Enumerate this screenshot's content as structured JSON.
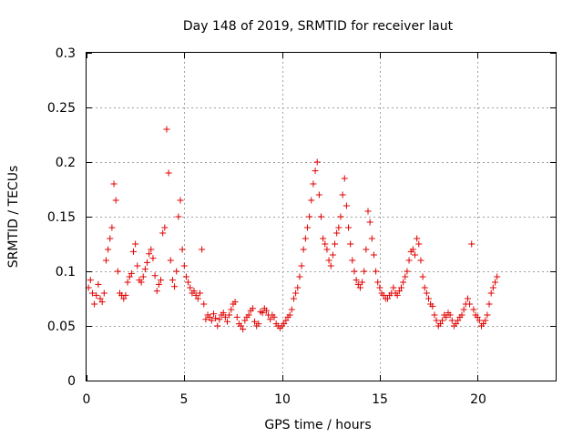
{
  "chart_data": {
    "type": "scatter",
    "title": "Day 148 of 2019, SRMTID for receiver laut",
    "xlabel": "GPS time / hours",
    "ylabel": "SRMTID / TECUs",
    "xlim": [
      0,
      24
    ],
    "ylim": [
      0,
      0.3
    ],
    "xticks": [
      0,
      5,
      10,
      15,
      20
    ],
    "xtick_labels": [
      "0",
      "5",
      "10",
      "15",
      "20"
    ],
    "yticks": [
      0,
      0.05,
      0.1,
      0.15,
      0.2,
      0.25,
      0.3
    ],
    "ytick_labels": [
      "0",
      "0.05",
      "0.1",
      "0.15",
      "0.2",
      "0.25",
      "0.3"
    ],
    "grid": true,
    "marker": "+",
    "marker_color": "#e00000",
    "series": [
      {
        "name": "SRMTID",
        "sample_interval_hours": 0.1,
        "x_start": 0.1,
        "values": [
          0.085,
          0.092,
          0.08,
          0.07,
          0.078,
          0.088,
          0.075,
          0.072,
          0.08,
          0.11,
          0.12,
          0.13,
          0.14,
          0.18,
          0.165,
          0.1,
          0.08,
          0.078,
          0.075,
          0.078,
          0.09,
          0.095,
          0.098,
          0.118,
          0.125,
          0.105,
          0.092,
          0.09,
          0.095,
          0.102,
          0.108,
          0.116,
          0.12,
          0.112,
          0.096,
          0.082,
          0.088,
          0.092,
          0.135,
          0.14,
          0.23,
          0.19,
          0.11,
          0.092,
          0.086,
          0.1,
          0.15,
          0.165,
          0.12,
          0.105,
          0.095,
          0.09,
          0.085,
          0.08,
          0.082,
          0.078,
          0.075,
          0.08,
          0.12,
          0.07,
          0.056,
          0.06,
          0.058,
          0.055,
          0.061,
          0.057,
          0.05,
          0.056,
          0.06,
          0.062,
          0.058,
          0.054,
          0.06,
          0.065,
          0.07,
          0.072,
          0.058,
          0.052,
          0.05,
          0.047,
          0.055,
          0.058,
          0.06,
          0.064,
          0.066,
          0.054,
          0.05,
          0.052,
          0.063,
          0.062,
          0.066,
          0.064,
          0.06,
          0.056,
          0.06,
          0.058,
          0.052,
          0.05,
          0.048,
          0.05,
          0.052,
          0.055,
          0.058,
          0.06,
          0.065,
          0.075,
          0.08,
          0.085,
          0.095,
          0.105,
          0.12,
          0.13,
          0.14,
          0.15,
          0.165,
          0.18,
          0.192,
          0.2,
          0.17,
          0.15,
          0.13,
          0.125,
          0.12,
          0.11,
          0.105,
          0.115,
          0.125,
          0.135,
          0.14,
          0.15,
          0.17,
          0.185,
          0.16,
          0.14,
          0.125,
          0.11,
          0.1,
          0.092,
          0.088,
          0.085,
          0.09,
          0.1,
          0.12,
          0.155,
          0.145,
          0.13,
          0.115,
          0.1,
          0.09,
          0.085,
          0.08,
          0.078,
          0.075,
          0.075,
          0.078,
          0.08,
          0.085,
          0.08,
          0.078,
          0.082,
          0.085,
          0.09,
          0.095,
          0.1,
          0.11,
          0.118,
          0.12,
          0.115,
          0.13,
          0.125,
          0.11,
          0.095,
          0.085,
          0.08,
          0.075,
          0.07,
          0.068,
          0.06,
          0.055,
          0.05,
          0.052,
          0.055,
          0.06,
          0.058,
          0.062,
          0.06,
          0.055,
          0.05,
          0.052,
          0.055,
          0.058,
          0.06,
          0.065,
          0.07,
          0.075,
          0.07,
          0.125,
          0.065,
          0.06,
          0.058,
          0.055,
          0.05,
          0.052,
          0.055,
          0.06,
          0.07,
          0.08,
          0.085,
          0.09,
          0.095
        ]
      }
    ]
  }
}
